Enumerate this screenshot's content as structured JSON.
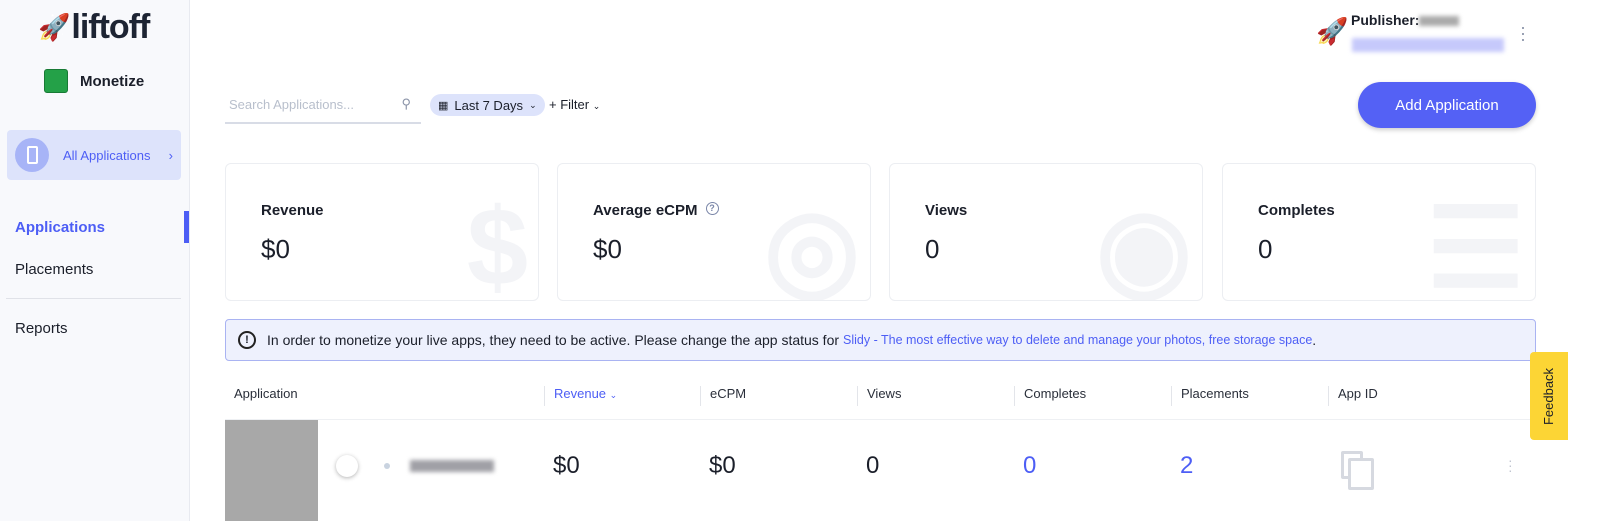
{
  "brand": {
    "logo": "liftoff",
    "product": "Monetize"
  },
  "sidebar": {
    "all_apps": "All Applications",
    "items": [
      {
        "label": "Applications",
        "active": true
      },
      {
        "label": "Placements"
      },
      {
        "label": "Reports"
      }
    ]
  },
  "header": {
    "publisher_label": "Publisher:"
  },
  "toolbar": {
    "search_placeholder": "Search Applications...",
    "date_range": "Last 7 Days",
    "filter": "+ Filter",
    "add_button": "Add Application"
  },
  "stats": [
    {
      "title": "Revenue",
      "value": "$0",
      "icon": "dollar-icon"
    },
    {
      "title": "Average eCPM",
      "value": "$0",
      "icon": "gauge-icon"
    },
    {
      "title": "Views",
      "value": "0",
      "icon": "eye-icon"
    },
    {
      "title": "Completes",
      "value": "0",
      "icon": "list-check-icon"
    }
  ],
  "notice": {
    "text": "In order to monetize your live apps, they need to be active. Please change the app status for",
    "link": "Slidy - The most effective way to delete and manage your photos, free storage space",
    "end": "."
  },
  "table": {
    "columns": [
      "Application",
      "Revenue",
      "eCPM",
      "Views",
      "Completes",
      "Placements",
      "App ID"
    ],
    "sorted_column": "Revenue",
    "rows": [
      {
        "platform": "ios",
        "revenue": "$0",
        "ecpm": "$0",
        "views": "0",
        "completes": "0",
        "placements": "2"
      }
    ]
  },
  "feedback": "Feedback",
  "colors": {
    "accent": "#5461f5",
    "highlight": "#dde3fb",
    "feedback": "#fcd535"
  }
}
